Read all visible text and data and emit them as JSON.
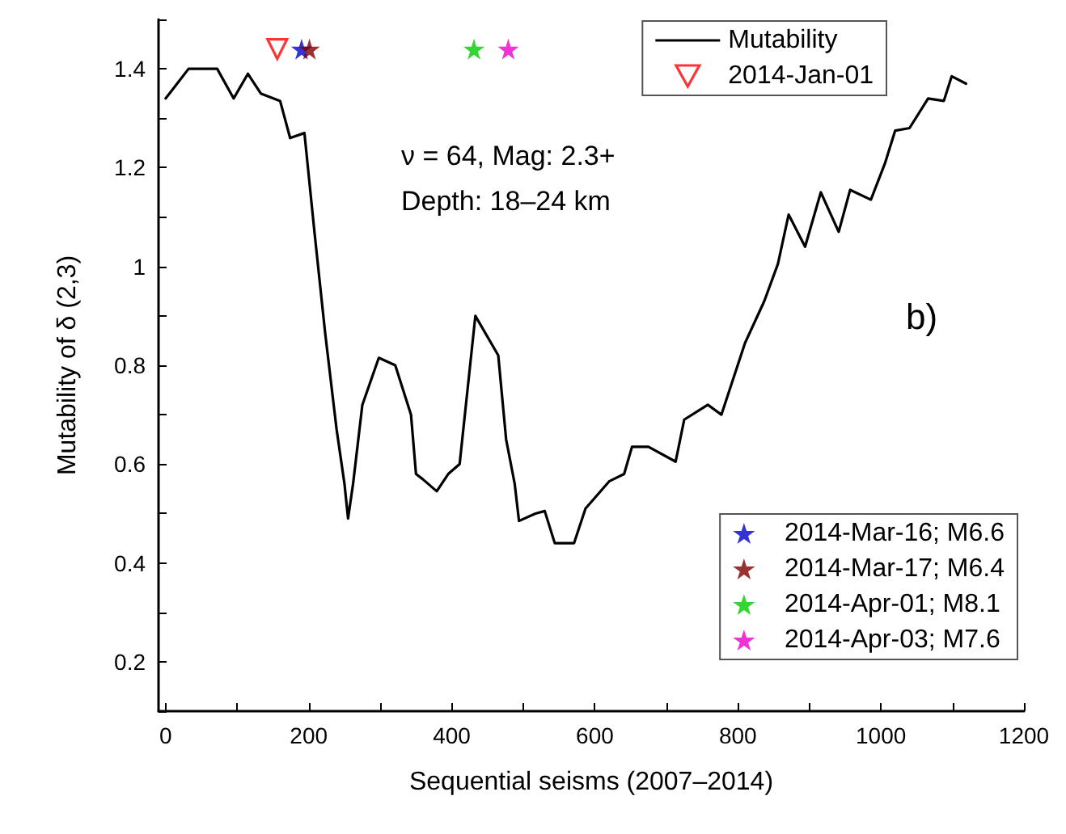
{
  "chart_data": {
    "type": "line",
    "xlabel": "Sequential seisms (2007–2014)",
    "ylabel": "Mutability of δ (2,3)",
    "annotations": [
      "ν = 64, Mag: 2.3+",
      "Depth: 18–24 km",
      "b)"
    ],
    "xlim": [
      -10,
      1200
    ],
    "ylim": [
      0.1,
      1.5
    ],
    "xticks": [
      0,
      {
        "value": 100,
        "label": null
      },
      200,
      {
        "value": 300,
        "label": null
      },
      400,
      {
        "value": 500,
        "label": null
      },
      600,
      {
        "value": 700,
        "label": null
      },
      800,
      {
        "value": 900,
        "label": null
      },
      1000,
      {
        "value": 1100,
        "label": null
      },
      1200
    ],
    "yticks": [
      {
        "value": 0.1,
        "label": null
      },
      0.2,
      {
        "value": 0.3,
        "label": null
      },
      0.4,
      {
        "value": 0.5,
        "label": null
      },
      0.6,
      {
        "value": 0.7,
        "label": null
      },
      0.8,
      {
        "value": 0.9,
        "label": null
      },
      1.0,
      {
        "value": 1.1,
        "label": null
      },
      1.2,
      {
        "value": 1.3,
        "label": null
      },
      1.4,
      {
        "value": 1.5,
        "label": null
      }
    ],
    "grid": false,
    "legend": "top right",
    "series": [
      {
        "name": "Mutability",
        "color": "#000000",
        "marker": "none",
        "line_style": "solid",
        "x": [
          0,
          16,
          32,
          72,
          95,
          115,
          133,
          160,
          174,
          194,
          208,
          223,
          239,
          250,
          255,
          262,
          275,
          298,
          321,
          343,
          350,
          359,
          379,
          395,
          411,
          433,
          465,
          476,
          488,
          494,
          517,
          530,
          544,
          571,
          587,
          620,
          641,
          652,
          675,
          713,
          725,
          758,
          777,
          810,
          837,
          856,
          871,
          894,
          916,
          941,
          957,
          986,
          1006,
          1020,
          1040,
          1066,
          1088,
          1099,
          1119
        ],
        "values": [
          1.34,
          1.37,
          1.4,
          1.4,
          1.34,
          1.39,
          1.35,
          1.335,
          1.26,
          1.27,
          1.07,
          0.865,
          0.67,
          0.56,
          0.49,
          0.56,
          0.72,
          0.815,
          0.8,
          0.7,
          0.58,
          0.57,
          0.545,
          0.58,
          0.6,
          0.9,
          0.82,
          0.65,
          0.56,
          0.485,
          0.5,
          0.505,
          0.44,
          0.44,
          0.51,
          0.565,
          0.58,
          0.635,
          0.635,
          0.605,
          0.69,
          0.72,
          0.7,
          0.845,
          0.93,
          1.005,
          1.105,
          1.04,
          1.15,
          1.07,
          1.155,
          1.135,
          1.21,
          1.275,
          1.28,
          1.34,
          1.335,
          1.385,
          1.37
        ]
      },
      {
        "name": "2014-Jan-01",
        "type": "scatter",
        "color": "#ff0000",
        "marker": "triangle",
        "x": [
          156
        ],
        "values": [
          1.44
        ]
      },
      {
        "name": "2014-Mar-16; M6.6",
        "type": "scatter",
        "color": "#0000cc",
        "marker": "star",
        "x": [
          190
        ],
        "values": [
          1.44
        ]
      },
      {
        "name": "2014-Mar-17; M6.4",
        "type": "scatter",
        "color": "#800000",
        "marker": "star",
        "x": [
          201
        ],
        "values": [
          1.44
        ]
      },
      {
        "name": "2014-Apr-01; M8.1",
        "type": "scatter",
        "color": "#00cc00",
        "marker": "star",
        "x": [
          431
        ],
        "values": [
          1.44
        ]
      },
      {
        "name": "2014-Apr-03; M7.6",
        "type": "scatter",
        "color": "#ee00cc",
        "marker": "star",
        "x": [
          479
        ],
        "values": [
          1.44
        ]
      }
    ]
  }
}
